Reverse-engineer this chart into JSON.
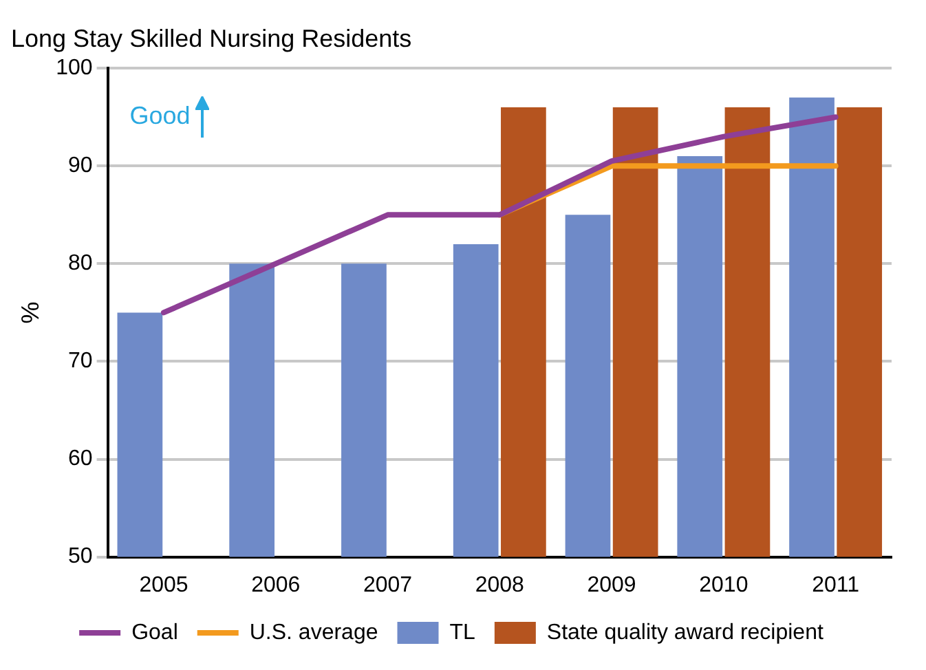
{
  "chart_data": {
    "type": "bar",
    "title": "Long Stay Skilled Nursing Residents",
    "ylabel": "%",
    "categories": [
      "2005",
      "2006",
      "2007",
      "2008",
      "2009",
      "2010",
      "2011"
    ],
    "series": [
      {
        "name": "TL",
        "color": "#6f8ac8",
        "values": [
          75,
          80,
          80,
          82,
          85,
          91,
          97
        ]
      },
      {
        "name": "State quality award recipient",
        "color": "#b5541f",
        "values": [
          null,
          null,
          null,
          96,
          96,
          96,
          96
        ]
      },
      {
        "name": "Goal",
        "type": "line",
        "color": "#8e3f96",
        "values": [
          75,
          80,
          85,
          85,
          90.5,
          93,
          95
        ]
      },
      {
        "name": "U.S. average",
        "type": "line",
        "color": "#f39a1e",
        "values": [
          null,
          null,
          null,
          85,
          90,
          90,
          90
        ]
      }
    ],
    "ylim": [
      50,
      100
    ],
    "yticks": [
      50,
      60,
      70,
      80,
      90,
      100
    ],
    "grid": "y",
    "legend": "bottom",
    "marker": "none",
    "annotations": [
      "Good"
    ]
  }
}
